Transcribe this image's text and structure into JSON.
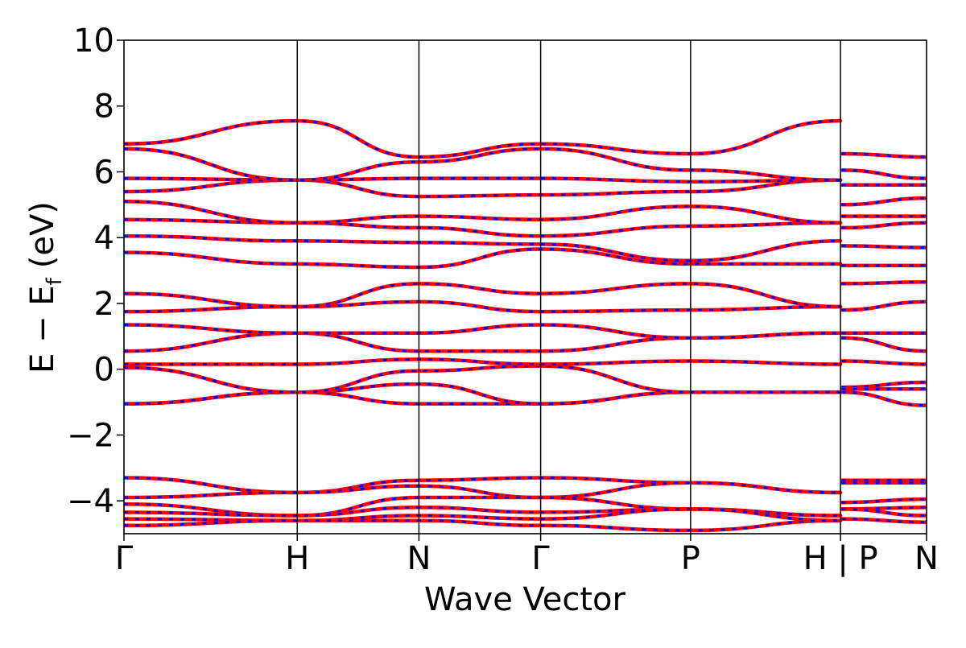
{
  "chart_data": {
    "type": "line",
    "title": "",
    "xlabel": "Wave Vector",
    "ylabel_main": "E − E",
    "ylabel_sub": "f",
    "ylabel_unit": "(eV)",
    "ylim": [
      -5,
      10
    ],
    "yticks": [
      -4,
      -2,
      0,
      2,
      4,
      6,
      8,
      10
    ],
    "ytick_labels": [
      "−4",
      "−2",
      "0",
      "2",
      "4",
      "6",
      "8",
      "10"
    ],
    "xlim": [
      0,
      6.53
    ],
    "kpoints": [
      {
        "label": "Γ",
        "x": 0.0
      },
      {
        "label": "H",
        "x": 1.41
      },
      {
        "label": "N",
        "x": 2.4
      },
      {
        "label": "Γ",
        "x": 3.39
      },
      {
        "label": "P",
        "x": 4.61
      },
      {
        "label": "H | P",
        "x": 5.83
      },
      {
        "label": "N",
        "x": 6.53
      }
    ],
    "grid": false,
    "legend": "none",
    "colors": {
      "spin_up": "#ff0000",
      "spin_down": "#0000ff",
      "axis": "#000000"
    },
    "series": [
      {
        "values": [
          [
            0.0,
            -3.3
          ],
          [
            1.41,
            -3.75
          ],
          [
            2.4,
            -3.38
          ],
          [
            3.39,
            -3.3
          ],
          [
            4.61,
            -3.45
          ],
          [
            5.83,
            -3.75
          ],
          [
            5.84,
            -3.38
          ],
          [
            6.53,
            -3.38
          ]
        ]
      },
      {
        "values": [
          [
            0.0,
            -3.9
          ],
          [
            1.41,
            -3.75
          ],
          [
            2.4,
            -3.55
          ],
          [
            3.39,
            -3.9
          ],
          [
            4.61,
            -3.45
          ],
          [
            5.83,
            -3.75
          ],
          [
            5.84,
            -3.45
          ],
          [
            6.53,
            -3.45
          ]
        ]
      },
      {
        "values": [
          [
            0.0,
            -4.1
          ],
          [
            1.41,
            -4.45
          ],
          [
            2.4,
            -3.9
          ],
          [
            3.39,
            -3.9
          ],
          [
            4.61,
            -4.25
          ],
          [
            5.83,
            -4.45
          ],
          [
            5.84,
            -4.05
          ],
          [
            6.53,
            -3.95
          ]
        ]
      },
      {
        "values": [
          [
            0.0,
            -4.35
          ],
          [
            1.41,
            -4.45
          ],
          [
            2.4,
            -4.2
          ],
          [
            3.39,
            -4.35
          ],
          [
            4.61,
            -4.25
          ],
          [
            5.83,
            -4.45
          ],
          [
            5.84,
            -4.25
          ],
          [
            6.53,
            -4.2
          ]
        ]
      },
      {
        "values": [
          [
            0.0,
            -4.55
          ],
          [
            1.41,
            -4.6
          ],
          [
            2.4,
            -4.45
          ],
          [
            3.39,
            -4.55
          ],
          [
            4.61,
            -4.25
          ],
          [
            5.83,
            -4.6
          ],
          [
            5.84,
            -4.25
          ],
          [
            6.53,
            -4.45
          ]
        ]
      },
      {
        "values": [
          [
            0.0,
            -4.75
          ],
          [
            1.41,
            -4.6
          ],
          [
            2.4,
            -4.6
          ],
          [
            3.39,
            -4.75
          ],
          [
            4.61,
            -4.9
          ],
          [
            5.83,
            -4.6
          ],
          [
            5.84,
            -4.55
          ],
          [
            6.53,
            -4.65
          ]
        ]
      },
      {
        "values": [
          [
            0.0,
            -1.05
          ],
          [
            1.41,
            -0.7
          ],
          [
            2.4,
            -1.05
          ],
          [
            3.39,
            -1.05
          ],
          [
            4.61,
            -0.7
          ],
          [
            5.83,
            -0.7
          ],
          [
            5.84,
            -0.7
          ],
          [
            6.53,
            -1.1
          ]
        ]
      },
      {
        "values": [
          [
            0.0,
            -1.05
          ],
          [
            1.41,
            -0.7
          ],
          [
            2.4,
            -0.45
          ],
          [
            3.39,
            -1.05
          ],
          [
            4.61,
            -0.7
          ],
          [
            5.83,
            -0.7
          ],
          [
            5.84,
            -0.55
          ],
          [
            6.53,
            -0.4
          ]
        ]
      },
      {
        "values": [
          [
            0.0,
            0.05
          ],
          [
            1.41,
            -0.7
          ],
          [
            2.4,
            -0.05
          ],
          [
            3.39,
            0.1
          ],
          [
            4.61,
            -0.7
          ],
          [
            5.83,
            -0.7
          ],
          [
            5.84,
            -0.6
          ],
          [
            6.53,
            -0.6
          ]
        ]
      },
      {
        "values": [
          [
            0.0,
            0.15
          ],
          [
            1.41,
            0.15
          ],
          [
            2.4,
            0.3
          ],
          [
            3.39,
            0.15
          ],
          [
            4.61,
            0.25
          ],
          [
            5.83,
            0.15
          ],
          [
            5.84,
            0.25
          ],
          [
            6.53,
            0.15
          ]
        ]
      },
      {
        "values": [
          [
            0.0,
            0.55
          ],
          [
            1.41,
            1.1
          ],
          [
            2.4,
            0.55
          ],
          [
            3.39,
            0.55
          ],
          [
            4.61,
            0.95
          ],
          [
            5.83,
            1.1
          ],
          [
            5.84,
            0.95
          ],
          [
            6.53,
            0.55
          ]
        ]
      },
      {
        "values": [
          [
            0.0,
            1.35
          ],
          [
            1.41,
            1.1
          ],
          [
            2.4,
            1.1
          ],
          [
            3.39,
            1.35
          ],
          [
            4.61,
            0.95
          ],
          [
            5.83,
            1.1
          ],
          [
            5.84,
            1.1
          ],
          [
            6.53,
            1.1
          ]
        ]
      },
      {
        "values": [
          [
            0.0,
            1.75
          ],
          [
            1.41,
            1.9
          ],
          [
            2.4,
            2.05
          ],
          [
            3.39,
            1.75
          ],
          [
            4.61,
            1.8
          ],
          [
            5.83,
            1.9
          ],
          [
            5.84,
            1.8
          ],
          [
            6.53,
            2.05
          ]
        ]
      },
      {
        "values": [
          [
            0.0,
            2.3
          ],
          [
            1.41,
            1.9
          ],
          [
            2.4,
            2.6
          ],
          [
            3.39,
            2.3
          ],
          [
            4.61,
            2.6
          ],
          [
            5.83,
            1.9
          ],
          [
            5.84,
            2.6
          ],
          [
            6.53,
            2.65
          ]
        ]
      },
      {
        "values": [
          [
            0.0,
            3.55
          ],
          [
            1.41,
            3.2
          ],
          [
            2.4,
            3.1
          ],
          [
            3.39,
            3.65
          ],
          [
            4.61,
            3.2
          ],
          [
            5.83,
            3.2
          ],
          [
            5.84,
            3.15
          ],
          [
            6.53,
            3.15
          ]
        ]
      },
      {
        "values": [
          [
            0.0,
            4.05
          ],
          [
            1.41,
            3.9
          ],
          [
            2.4,
            3.85
          ],
          [
            3.39,
            3.8
          ],
          [
            4.61,
            3.3
          ],
          [
            5.83,
            3.9
          ],
          [
            5.84,
            3.75
          ],
          [
            6.53,
            3.7
          ]
        ]
      },
      {
        "values": [
          [
            0.0,
            4.55
          ],
          [
            1.41,
            4.45
          ],
          [
            2.4,
            4.3
          ],
          [
            3.39,
            4.05
          ],
          [
            4.61,
            4.35
          ],
          [
            5.83,
            4.45
          ],
          [
            5.84,
            4.3
          ],
          [
            6.53,
            4.45
          ]
        ]
      },
      {
        "values": [
          [
            0.0,
            5.1
          ],
          [
            1.41,
            4.45
          ],
          [
            2.4,
            4.65
          ],
          [
            3.39,
            4.55
          ],
          [
            4.61,
            4.95
          ],
          [
            5.83,
            4.45
          ],
          [
            5.84,
            4.65
          ],
          [
            6.53,
            4.65
          ]
        ]
      },
      {
        "values": [
          [
            0.0,
            5.4
          ],
          [
            1.41,
            5.75
          ],
          [
            2.4,
            5.25
          ],
          [
            3.39,
            5.3
          ],
          [
            4.61,
            5.4
          ],
          [
            5.83,
            5.75
          ],
          [
            5.84,
            5.0
          ],
          [
            6.53,
            5.2
          ]
        ]
      },
      {
        "values": [
          [
            0.0,
            5.8
          ],
          [
            1.41,
            5.75
          ],
          [
            2.4,
            5.8
          ],
          [
            3.39,
            5.8
          ],
          [
            4.61,
            5.7
          ],
          [
            5.83,
            5.75
          ],
          [
            5.84,
            5.6
          ],
          [
            6.53,
            5.6
          ]
        ]
      },
      {
        "values": [
          [
            0.0,
            6.7
          ],
          [
            1.41,
            5.75
          ],
          [
            2.4,
            6.3
          ],
          [
            3.39,
            6.7
          ],
          [
            4.61,
            6.05
          ],
          [
            5.83,
            5.75
          ],
          [
            5.84,
            6.05
          ],
          [
            6.53,
            5.8
          ]
        ]
      },
      {
        "values": [
          [
            0.0,
            6.85
          ],
          [
            1.41,
            7.55
          ],
          [
            2.4,
            6.45
          ],
          [
            3.39,
            6.85
          ],
          [
            4.61,
            6.55
          ],
          [
            5.83,
            7.55
          ],
          [
            5.84,
            6.55
          ],
          [
            6.53,
            6.45
          ]
        ]
      }
    ]
  }
}
